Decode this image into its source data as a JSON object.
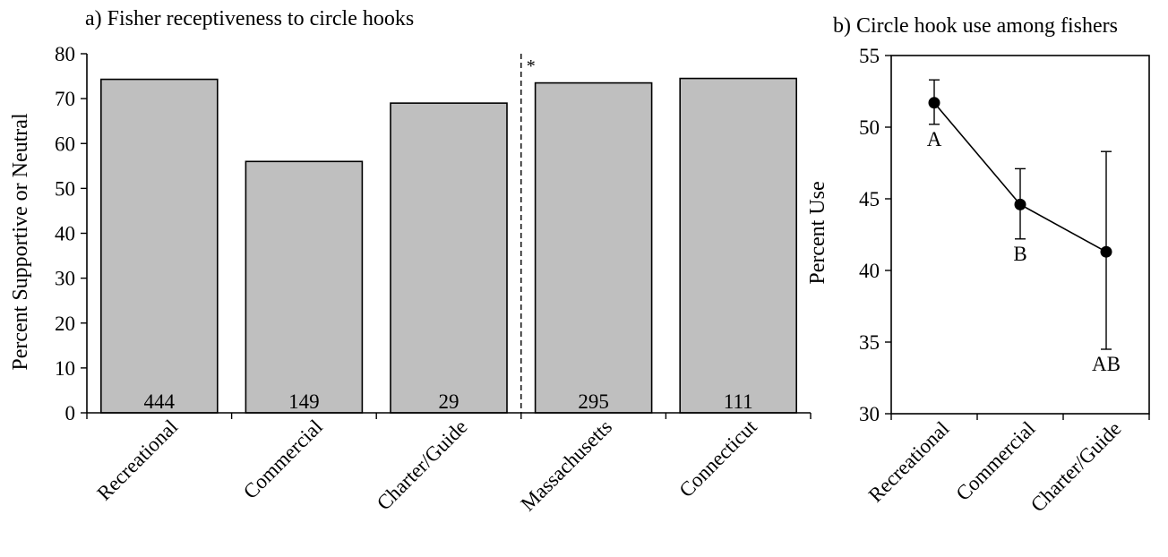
{
  "chart_data": [
    {
      "type": "bar",
      "title": "a) Fisher receptiveness to circle hooks",
      "ylabel": "Percent Supportive or Neutral",
      "xlabel": "",
      "ylim": [
        0,
        80
      ],
      "yticks": [
        0,
        10,
        20,
        30,
        40,
        50,
        60,
        70,
        80
      ],
      "categories": [
        "Recreational",
        "Commercial",
        "Charter/Guide",
        "Massachusetts",
        "Connecticut"
      ],
      "values": [
        74.3,
        56.0,
        69.0,
        73.5,
        74.5
      ],
      "sample_sizes": [
        "444",
        "149",
        "29",
        "295",
        "111"
      ],
      "divider_marker": "*",
      "bar_color": "#bfbfbf",
      "grid": false
    },
    {
      "type": "line",
      "title": "b) Circle hook use among fishers",
      "ylabel": "Percent Use",
      "xlabel": "",
      "ylim": [
        30,
        55
      ],
      "yticks": [
        30,
        35,
        40,
        45,
        50,
        55
      ],
      "categories": [
        "Recreational",
        "Commercial",
        "Charter/Guide"
      ],
      "values": [
        51.7,
        44.6,
        41.3
      ],
      "error_low": [
        50.2,
        42.2,
        34.5
      ],
      "error_high": [
        53.3,
        47.1,
        48.3
      ],
      "point_labels": [
        "A",
        "B",
        "AB"
      ],
      "grid": false
    }
  ]
}
